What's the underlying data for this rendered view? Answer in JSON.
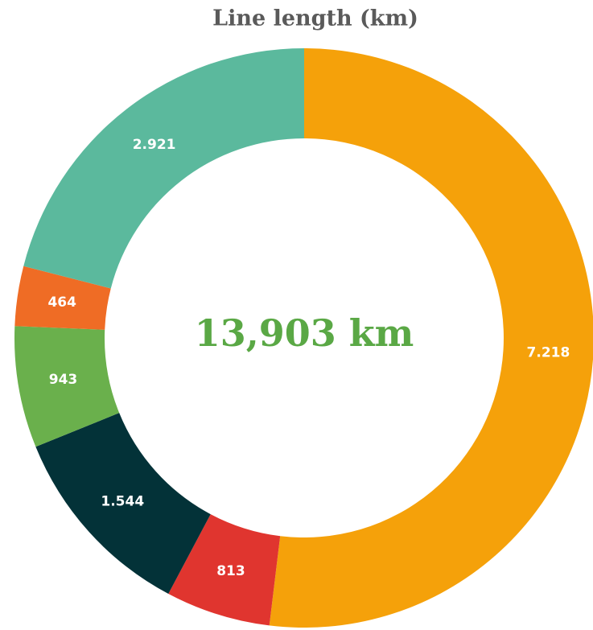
{
  "chart_data": {
    "type": "donut",
    "title": "Line length (km)",
    "center_label": "13,903 km",
    "categories": [
      null,
      null,
      null,
      null,
      null,
      null
    ],
    "values": [
      7218,
      813,
      1544,
      943,
      464,
      2921
    ],
    "value_labels": [
      "7.218",
      "813",
      "1.544",
      "943",
      "464",
      "2.921"
    ],
    "colors": [
      "#f5a10a",
      "#e0352f",
      "#033238",
      "#6ab04c",
      "#ef6c25",
      "#5bb99d"
    ]
  }
}
